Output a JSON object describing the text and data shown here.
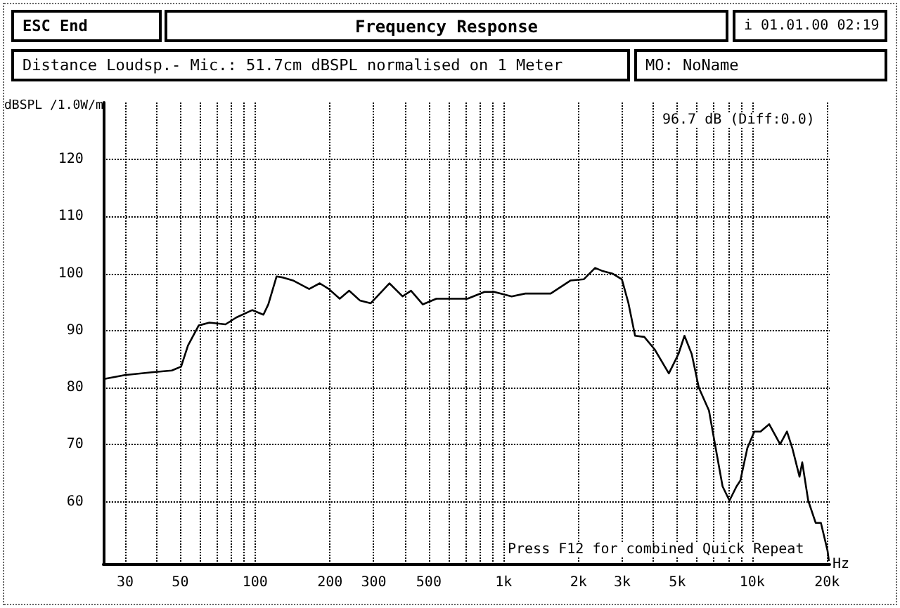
{
  "chart_data": {
    "type": "line",
    "title": "Frequency Response",
    "subtitle": "Distance Loudsp.- Mic.: 51.7cm dBSPL normalised on 1 Meter",
    "ylabel": "dBSPL /1.0W/m",
    "annotations": [
      "ESC End",
      "i 01.01.00 02:19",
      "MO: NoName",
      "96.7 dB (Diff:0.0)",
      "Press F12 for combined Quick Repeat"
    ],
    "xlabel": "Hz",
    "log": "x",
    "grid": true,
    "marker": "none",
    "line_style": "solid",
    "xlim": [
      24.5,
      20500
    ],
    "ylim": [
      49,
      130
    ],
    "xticks": [
      {
        "value": 30,
        "label": "30"
      },
      {
        "value": 40,
        "label": null
      },
      {
        "value": 50,
        "label": "50"
      },
      {
        "value": 60,
        "label": null
      },
      {
        "value": 70,
        "label": null
      },
      {
        "value": 80,
        "label": null
      },
      {
        "value": 90,
        "label": null
      },
      {
        "value": 100,
        "label": "100"
      },
      {
        "value": 200,
        "label": "200"
      },
      {
        "value": 300,
        "label": "300"
      },
      {
        "value": 400,
        "label": null
      },
      {
        "value": 500,
        "label": "500"
      },
      {
        "value": 600,
        "label": null
      },
      {
        "value": 700,
        "label": null
      },
      {
        "value": 800,
        "label": null
      },
      {
        "value": 900,
        "label": null
      },
      {
        "value": 1000,
        "label": "1k"
      },
      {
        "value": 2000,
        "label": "2k"
      },
      {
        "value": 3000,
        "label": "3k"
      },
      {
        "value": 4000,
        "label": null
      },
      {
        "value": 5000,
        "label": "5k"
      },
      {
        "value": 6000,
        "label": null
      },
      {
        "value": 7000,
        "label": null
      },
      {
        "value": 8000,
        "label": null
      },
      {
        "value": 9000,
        "label": null
      },
      {
        "value": 10000,
        "label": "10k"
      },
      {
        "value": 20000,
        "label": "20k"
      }
    ],
    "yticks": [
      60,
      70,
      80,
      90,
      100,
      110,
      120
    ],
    "series": [
      {
        "color": "#000000",
        "x": [
          24.5,
          29.9,
          38.4,
          46.2,
          50.4,
          53.7,
          59.3,
          65.5,
          76,
          84,
          97.5,
          108,
          113,
          122,
          130,
          142,
          165,
          182,
          198,
          219,
          239,
          264,
          292,
          347,
          392,
          424,
          473,
          536,
          715,
          838,
          916,
          1077,
          1222,
          1546,
          1861,
          2100,
          2333,
          2485,
          2740,
          2990,
          3178,
          3379,
          3680,
          4052,
          4620,
          5050,
          5340,
          5710,
          6100,
          6700,
          7130,
          7600,
          8100,
          8650,
          8960,
          9560,
          10200,
          10800,
          11700,
          12950,
          13800,
          14500,
          15500,
          15900,
          16800,
          18000,
          18900,
          20100,
          20350
        ],
        "values": [
          81.5,
          82.2,
          82.7,
          83,
          83.7,
          87.4,
          90.9,
          91.4,
          91.1,
          92.3,
          93.6,
          92.8,
          94.6,
          99.5,
          99.3,
          98.8,
          97.3,
          98.3,
          97.3,
          95.6,
          97,
          95.3,
          94.8,
          98.3,
          96,
          97,
          94.6,
          95.6,
          95.6,
          96.8,
          96.8,
          96,
          96.5,
          96.5,
          98.8,
          99,
          101,
          100.5,
          100,
          99,
          94.8,
          89.1,
          88.9,
          86.7,
          82.5,
          85.9,
          89.1,
          85.9,
          80,
          76,
          69.4,
          62.7,
          60.2,
          62.7,
          63.7,
          69.4,
          72.3,
          72.3,
          73.6,
          70.1,
          72.3,
          69.4,
          64.4,
          66.9,
          60.2,
          56.3,
          56.3,
          51.4,
          49.6
        ]
      }
    ]
  }
}
